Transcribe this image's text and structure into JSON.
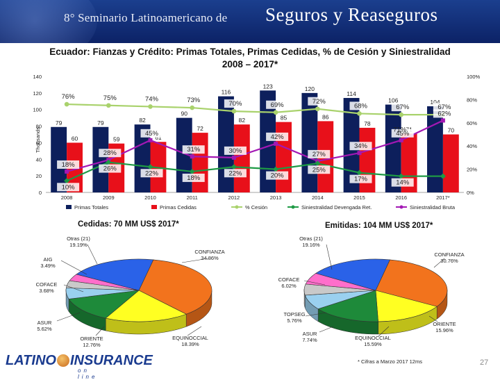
{
  "banner": {
    "subtitle": "8° Seminario Latinoamericano de",
    "title_big": "Seguros y Reaseguros"
  },
  "chart_title_line1": "Ecuador: Fianzas y Crédito: Primas Totales, Primas Cedidas, % de Cesión y Siniestralidad",
  "chart_title_line2": "2008 – 2017*",
  "colors": {
    "primas_totales": "#0d1f5c",
    "primas_cedidas": "#e8101a",
    "cesion": "#a9d26c",
    "dev_ret": "#1e9a45",
    "bruta": "#a318b4"
  },
  "chart_data": [
    {
      "type": "bar",
      "title": "Ecuador: Fianzas y Crédito: Primas Totales, Primas Cedidas, % de Cesión y Siniestralidad 2008 – 2017*",
      "ylabel": "Thousands",
      "ylim": [
        0,
        140
      ],
      "y_ticks": [
        "0",
        "20",
        "40",
        "60",
        "80",
        "100",
        "120",
        "140"
      ],
      "y2lim": [
        0,
        100
      ],
      "y2_ticks": [
        "0%",
        "20%",
        "40%",
        "60%",
        "80%",
        "100%"
      ],
      "categories": [
        "2008",
        "2009",
        "2010",
        "2011",
        "2012",
        "2013",
        "2014",
        "2015",
        "2016",
        "2017*"
      ],
      "series": [
        {
          "name": "Primas Totales",
          "type": "bar",
          "axis": "left",
          "values": [
            79,
            79,
            82,
            90,
            116,
            123,
            120,
            114,
            106,
            104
          ],
          "labels": [
            "79",
            "79",
            "82",
            "90",
            "116",
            "123",
            "120",
            "114",
            "106",
            "104"
          ]
        },
        {
          "name": "Primas Cedidas",
          "type": "bar",
          "axis": "left",
          "values": [
            60,
            59,
            61,
            72,
            82,
            85,
            86,
            78,
            71,
            70
          ],
          "labels": [
            "60",
            "59",
            "61",
            "72",
            "82",
            "85",
            "86",
            "78",
            "71",
            "70"
          ]
        },
        {
          "name": "% Cesión",
          "type": "line",
          "axis": "right",
          "values": [
            76,
            75,
            74,
            73,
            70,
            69,
            72,
            68,
            67,
            67
          ],
          "labels": [
            "76%",
            "75%",
            "74%",
            "73%",
            "70%",
            "69%",
            "72%",
            "68%",
            "67%",
            "67%"
          ]
        },
        {
          "name": "Siniestralidad Devengada Ret.",
          "type": "line",
          "axis": "right",
          "values": [
            10,
            26,
            22,
            18,
            22,
            20,
            25,
            17,
            14,
            14
          ],
          "labels": [
            "10%",
            "26%",
            "22%",
            "18%",
            "22%",
            "20%",
            "25%",
            "17%",
            "14%",
            ""
          ]
        },
        {
          "name": "Siniestralidad Bruta",
          "type": "line",
          "axis": "right",
          "values": [
            18,
            28,
            45,
            31,
            30,
            42,
            27,
            34,
            45,
            62
          ],
          "labels": [
            "18%",
            "28%",
            "45%",
            "31%",
            "30%",
            "42%",
            "27%",
            "34%",
            "45%",
            "62%"
          ]
        }
      ],
      "legend": [
        "Primas Totales",
        "Primas Cedidas",
        "% Cesión",
        "Siniestralidad Devengada Ret.",
        "Siniestralidad Bruta"
      ],
      "extra_labels": [
        "71%"
      ]
    },
    {
      "type": "pie",
      "title": "Cedidas: 70 MM US$ 2017*",
      "slices": [
        {
          "label": "CONFIANZA",
          "value": 34.86,
          "pct": "34.86%"
        },
        {
          "label": "EQUINOCCIAL",
          "value": 18.39,
          "pct": "18.39%"
        },
        {
          "label": "ORIENTE",
          "value": 12.76,
          "pct": "12.76%"
        },
        {
          "label": "ASUR",
          "value": 5.62,
          "pct": "5.62%"
        },
        {
          "label": "COFACE",
          "value": 3.68,
          "pct": "3.68%"
        },
        {
          "label": "AIG",
          "value": 3.49,
          "pct": "3.49%"
        },
        {
          "label": "Otras (21)",
          "value": 19.19,
          "pct": "19.19%"
        }
      ]
    },
    {
      "type": "pie",
      "title": "Emitidas: 104 MM US$ 2017*",
      "slices": [
        {
          "label": "CONFIANZA",
          "value": 30.76,
          "pct": "30.76%"
        },
        {
          "label": "ORIENTE",
          "value": 15.96,
          "pct": "15.96%"
        },
        {
          "label": "EQUINOCCIAL",
          "value": 15.59,
          "pct": "15.59%"
        },
        {
          "label": "ASUR",
          "value": 7.74,
          "pct": "7.74%"
        },
        {
          "label": "TOPSEG",
          "value": 5.76,
          "pct": "5.76%"
        },
        {
          "label": "COFACE",
          "value": 6.02,
          "pct": "6.02%"
        },
        {
          "label": "Otras (21)",
          "value": 19.16,
          "pct": "19.16%"
        }
      ]
    }
  ],
  "pie_colors": [
    "#f2731d",
    "#ffff22",
    "#1e8a3a",
    "#9ad0ef",
    "#c9c9c9",
    "#ff6ecb",
    "#2a62e8"
  ],
  "pie_left_title": "Cedidas: 70 MM US$ 2017*",
  "pie_right_title": "Emitidas: 104 MM US$ 2017*",
  "footnote": "* Cifras a Marzo 2017 12ms",
  "page_number": "27",
  "logo": {
    "part1": "LATINO",
    "part2": "INSURANCE",
    "sub": "on line"
  }
}
